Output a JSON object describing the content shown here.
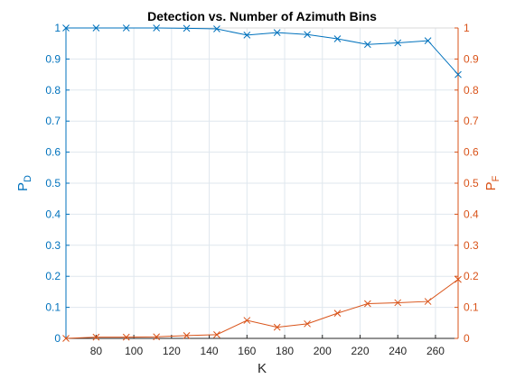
{
  "chart_data": {
    "type": "line",
    "title": "Detection vs. Number of Azimuth Bins",
    "xlabel": "K",
    "ylabel_left": {
      "base": "P",
      "sub": "D"
    },
    "ylabel_right": {
      "base": "P",
      "sub": "F"
    },
    "xlim": [
      64,
      272
    ],
    "ylim_left": [
      0,
      1
    ],
    "ylim_right": [
      0,
      1
    ],
    "x_ticks": [
      80,
      100,
      120,
      140,
      160,
      180,
      200,
      220,
      240,
      260
    ],
    "y_ticks": [
      0,
      0.1,
      0.2,
      0.3,
      0.4,
      0.5,
      0.6,
      0.7,
      0.8,
      0.9,
      1
    ],
    "y_tick_labels": [
      "0",
      "0.1",
      "0.2",
      "0.3",
      "0.4",
      "0.5",
      "0.6",
      "0.7",
      "0.8",
      "0.9",
      "1"
    ],
    "grid": true,
    "x": [
      64,
      80,
      96,
      112,
      128,
      144,
      160,
      176,
      192,
      208,
      224,
      240,
      256,
      272
    ],
    "series": [
      {
        "axis": "left",
        "color": "#0072BD",
        "marker": "x",
        "values": [
          1.0,
          1.0,
          1.0,
          1.0,
          0.999,
          0.997,
          0.977,
          0.985,
          0.979,
          0.965,
          0.947,
          0.952,
          0.959,
          0.85
        ]
      },
      {
        "axis": "right",
        "color": "#D95319",
        "marker": "x",
        "values": [
          0.0,
          0.004,
          0.004,
          0.005,
          0.009,
          0.012,
          0.058,
          0.036,
          0.047,
          0.081,
          0.112,
          0.115,
          0.119,
          0.19
        ]
      }
    ]
  }
}
